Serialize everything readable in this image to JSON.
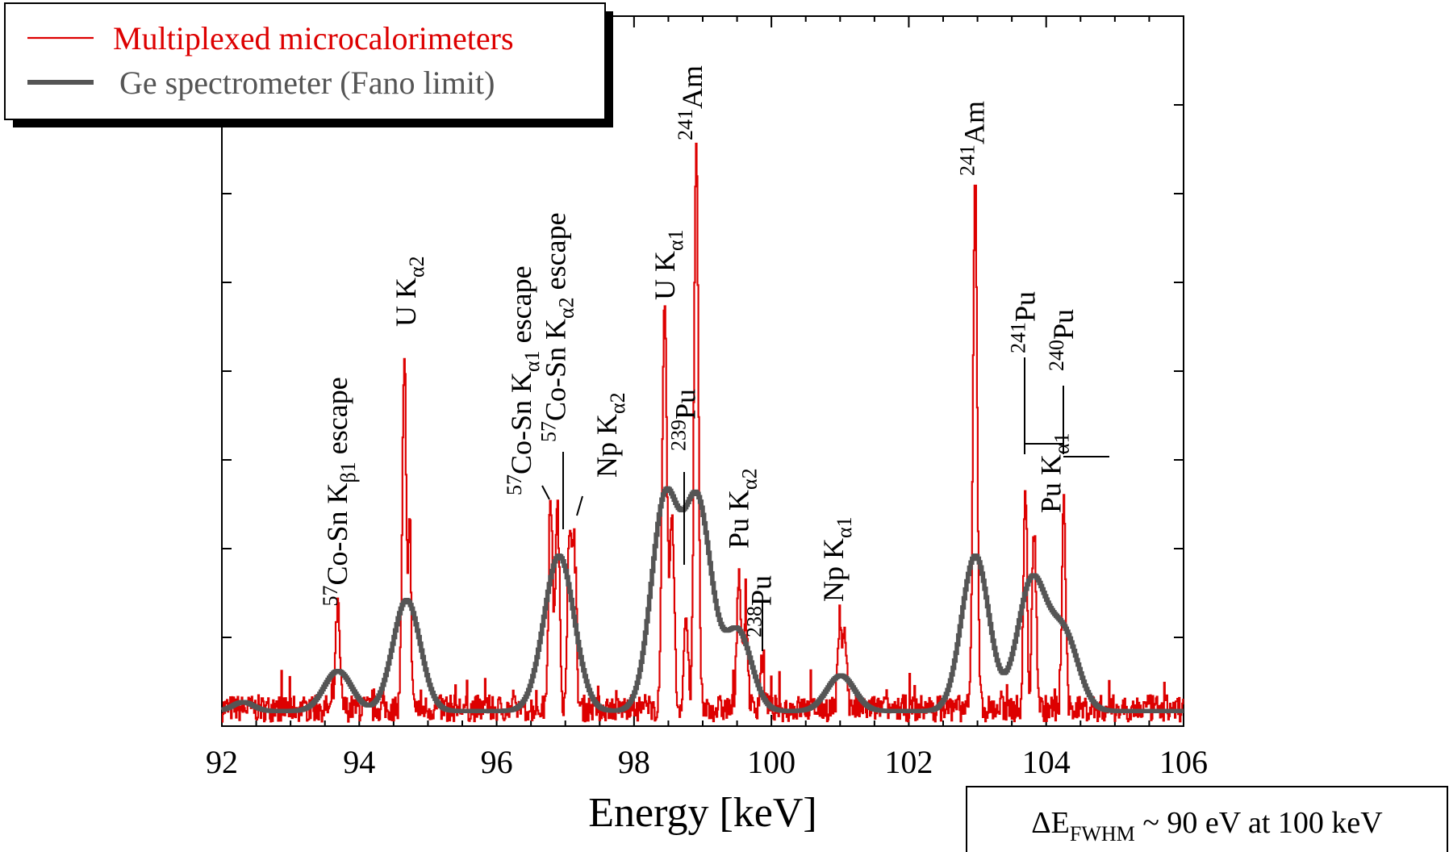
{
  "chart_data": {
    "type": "line",
    "title": "",
    "xlabel": "Energy [keV]",
    "ylabel": "",
    "xlim": [
      92,
      106
    ],
    "ylim": [
      0,
      8
    ],
    "xticks": [
      "92",
      "94",
      "96",
      "98",
      "100",
      "102",
      "104",
      "106"
    ],
    "grid": false,
    "legend_position": "top-left",
    "series": [
      {
        "name": "Multiplexed microcalorimeters",
        "color": "#dd0000",
        "peaks": [
          {
            "x": 93.68,
            "height": 1.15,
            "width": 0.03
          },
          {
            "x": 94.65,
            "height": 3.85,
            "width": 0.03
          },
          {
            "x": 94.73,
            "height": 2.05,
            "width": 0.02
          },
          {
            "x": 96.78,
            "height": 2.35,
            "width": 0.03
          },
          {
            "x": 96.88,
            "height": 2.25,
            "width": 0.03
          },
          {
            "x": 97.05,
            "height": 1.75,
            "width": 0.03
          },
          {
            "x": 97.12,
            "height": 1.9,
            "width": 0.03
          },
          {
            "x": 98.44,
            "height": 4.45,
            "width": 0.035
          },
          {
            "x": 98.55,
            "height": 2.2,
            "width": 0.03
          },
          {
            "x": 98.75,
            "height": 1.05,
            "width": 0.03
          },
          {
            "x": 98.9,
            "height": 6.45,
            "width": 0.03
          },
          {
            "x": 99.52,
            "height": 1.55,
            "width": 0.03
          },
          {
            "x": 99.62,
            "height": 1.05,
            "width": 0.03
          },
          {
            "x": 99.86,
            "height": 0.55,
            "width": 0.03
          },
          {
            "x": 100.99,
            "height": 0.8,
            "width": 0.03
          },
          {
            "x": 101.06,
            "height": 0.85,
            "width": 0.03
          },
          {
            "x": 102.96,
            "height": 6.05,
            "width": 0.03
          },
          {
            "x": 103.69,
            "height": 2.5,
            "width": 0.025
          },
          {
            "x": 103.82,
            "height": 2.0,
            "width": 0.03
          },
          {
            "x": 104.25,
            "height": 2.5,
            "width": 0.025
          }
        ],
        "baseline": 0.2,
        "noise": 0.15
      },
      {
        "name": "Ge spectrometer (Fano limit)",
        "color": "#555555",
        "peaks": [
          {
            "x": 92.3,
            "height": 0.1,
            "width": 0.15
          },
          {
            "x": 93.68,
            "height": 0.45,
            "width": 0.2
          },
          {
            "x": 94.68,
            "height": 1.25,
            "width": 0.2
          },
          {
            "x": 96.9,
            "height": 1.75,
            "width": 0.22
          },
          {
            "x": 98.44,
            "height": 2.35,
            "width": 0.2
          },
          {
            "x": 98.92,
            "height": 2.3,
            "width": 0.2
          },
          {
            "x": 99.5,
            "height": 0.9,
            "width": 0.2
          },
          {
            "x": 101.0,
            "height": 0.4,
            "width": 0.2
          },
          {
            "x": 102.96,
            "height": 1.75,
            "width": 0.2
          },
          {
            "x": 103.78,
            "height": 1.45,
            "width": 0.21
          },
          {
            "x": 104.25,
            "height": 0.85,
            "width": 0.21
          }
        ],
        "baseline": 0.17
      }
    ],
    "annotations": [
      {
        "lines": [
          "57",
          "Co-Sn K",
          "β1",
          " escape"
        ],
        "x": 93.68,
        "y": 1.35
      },
      {
        "lines": [
          "U K",
          "α2"
        ],
        "x": 94.68,
        "y": 4.5
      },
      {
        "lines": [
          "57",
          "Co-Sn K",
          "α1",
          " escape"
        ],
        "x": 96.5,
        "y": 2.6
      },
      {
        "lines": [
          "57",
          "Co-Sn K",
          "α2",
          " escape"
        ],
        "x": 97.0,
        "y": 3.2
      },
      {
        "lines": [
          "Np K",
          "α2"
        ],
        "x": 97.6,
        "y": 2.8
      },
      {
        "lines": [
          "U K",
          "α1"
        ],
        "x": 98.45,
        "y": 4.8
      },
      {
        "lines": [
          "239",
          "Pu"
        ],
        "x": 98.75,
        "y": 3.1
      },
      {
        "lines": [
          "241",
          "Am"
        ],
        "x": 98.85,
        "y": 6.6
      },
      {
        "lines": [
          "Pu K",
          "α2"
        ],
        "x": 99.52,
        "y": 2.0
      },
      {
        "lines": [
          "238",
          "Pu"
        ],
        "x": 99.85,
        "y": 1.0
      },
      {
        "lines": [
          "Np K",
          "α1"
        ],
        "x": 100.9,
        "y": 1.4
      },
      {
        "lines": [
          "241",
          "Am"
        ],
        "x": 102.95,
        "y": 6.2
      },
      {
        "lines": [
          "241",
          "Pu"
        ],
        "x": 103.69,
        "y": 4.2
      },
      {
        "lines": [
          "240",
          "Pu"
        ],
        "x": 104.25,
        "y": 4.0
      },
      {
        "lines": [
          "Pu K",
          "α1"
        ],
        "x": 103.95,
        "y": 2.4
      }
    ],
    "note": {
      "prefix": "ΔE",
      "sub": "FWHM",
      "suffix": " ~ 90 eV at 100 keV"
    }
  }
}
